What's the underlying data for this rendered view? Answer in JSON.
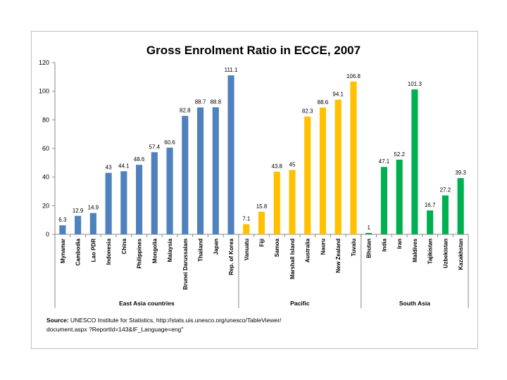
{
  "chart_data": {
    "type": "bar",
    "title": "Gross Enrolment Ratio in ECCE, 2007",
    "ylim": [
      0,
      120
    ],
    "yticks": [
      0,
      20,
      40,
      60,
      80,
      100,
      120
    ],
    "grid": false,
    "groups": [
      {
        "name": "East Asia countries",
        "color": "#4f81bd",
        "categories": [
          "Mynamar",
          "Cambodia",
          "Lao PDR",
          "Indonesia",
          "China",
          "Philippines",
          "Mongolia",
          "Malaysia",
          "Brunei Darussalam",
          "Thailand",
          "Japan",
          "Rep. of Korea"
        ],
        "values": [
          6.3,
          12.9,
          14.9,
          43,
          44.1,
          48.6,
          57.4,
          60.6,
          82.8,
          88.7,
          88.8,
          111.1
        ]
      },
      {
        "name": "Pacific",
        "color": "#ffc000",
        "categories": [
          "Vanuatu",
          "Fiji",
          "Samoa",
          "Marshall Island",
          "Australia",
          "Nauru",
          "New Zealand",
          "Tuvalu"
        ],
        "values": [
          7.1,
          15.8,
          43.8,
          45,
          82.3,
          88.6,
          94.1,
          106.8
        ]
      },
      {
        "name": "South Asia",
        "color": "#00b050",
        "categories": [
          "Bhutan",
          "India",
          "Iran",
          "Maldives",
          "Tajikistan",
          "Uzbekistan",
          "Kazakhstan"
        ],
        "values": [
          1,
          47.1,
          52.2,
          101.3,
          16.7,
          27.2,
          39.3
        ]
      }
    ]
  },
  "source": {
    "label": "Source:",
    "text": "UNESCO Institute for Statistics, http://stats.uis.unesco.org/unesco/TableViewer/",
    "text2": "document.aspx ?ReportId=143&IF_Language=eng\""
  }
}
